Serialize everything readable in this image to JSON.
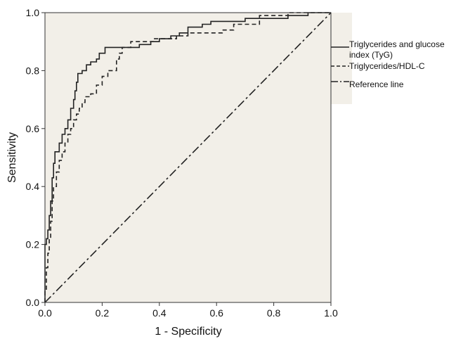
{
  "chart_data": {
    "type": "line",
    "title": "",
    "xlabel": "1 - Specificity",
    "ylabel": "Sensitivity",
    "xlim": [
      0,
      1
    ],
    "ylim": [
      0,
      1
    ],
    "xticks": [
      "0.0",
      "0.2",
      "0.4",
      "0.6",
      "0.8",
      "1.0"
    ],
    "yticks": [
      "0.0",
      "0.2",
      "0.4",
      "0.6",
      "0.8",
      "1.0"
    ],
    "grid": false,
    "legend_position": "right",
    "plot_background": "#f2efe8",
    "series": [
      {
        "name": "Triglycerides and glucose index (TyG)",
        "style": "solid",
        "color": "#222222",
        "x": [
          0,
          0,
          0.005,
          0.005,
          0.01,
          0.01,
          0.015,
          0.015,
          0.02,
          0.02,
          0.025,
          0.025,
          0.03,
          0.03,
          0.035,
          0.035,
          0.05,
          0.05,
          0.06,
          0.06,
          0.07,
          0.07,
          0.08,
          0.08,
          0.09,
          0.09,
          0.1,
          0.1,
          0.105,
          0.105,
          0.11,
          0.11,
          0.115,
          0.115,
          0.13,
          0.13,
          0.145,
          0.145,
          0.16,
          0.16,
          0.18,
          0.18,
          0.19,
          0.19,
          0.2,
          0.2,
          0.21,
          0.21,
          0.24,
          0.24,
          0.28,
          0.28,
          0.33,
          0.33,
          0.37,
          0.37,
          0.4,
          0.4,
          0.44,
          0.44,
          0.47,
          0.47,
          0.5,
          0.5,
          0.55,
          0.55,
          0.58,
          0.58,
          0.63,
          0.63,
          0.7,
          0.7,
          0.78,
          0.78,
          0.85,
          0.85,
          0.92,
          0.92,
          1.0
        ],
        "y": [
          0,
          0.2,
          0.2,
          0.22,
          0.22,
          0.25,
          0.25,
          0.3,
          0.3,
          0.35,
          0.35,
          0.43,
          0.43,
          0.48,
          0.48,
          0.52,
          0.52,
          0.55,
          0.55,
          0.58,
          0.58,
          0.6,
          0.6,
          0.63,
          0.63,
          0.67,
          0.67,
          0.7,
          0.7,
          0.73,
          0.73,
          0.76,
          0.76,
          0.79,
          0.79,
          0.8,
          0.8,
          0.82,
          0.82,
          0.83,
          0.83,
          0.84,
          0.84,
          0.86,
          0.86,
          0.86,
          0.86,
          0.88,
          0.88,
          0.88,
          0.88,
          0.88,
          0.88,
          0.89,
          0.89,
          0.9,
          0.9,
          0.91,
          0.91,
          0.92,
          0.92,
          0.93,
          0.93,
          0.95,
          0.95,
          0.96,
          0.96,
          0.97,
          0.97,
          0.97,
          0.97,
          0.98,
          0.98,
          0.98,
          0.98,
          0.99,
          0.99,
          1.0,
          1.0
        ]
      },
      {
        "name": "Triglycerides/HDL-C",
        "style": "dashed",
        "color": "#222222",
        "x": [
          0,
          0,
          0.005,
          0.005,
          0.01,
          0.01,
          0.015,
          0.015,
          0.02,
          0.02,
          0.025,
          0.025,
          0.03,
          0.03,
          0.04,
          0.04,
          0.05,
          0.05,
          0.06,
          0.06,
          0.07,
          0.07,
          0.08,
          0.08,
          0.09,
          0.09,
          0.1,
          0.1,
          0.11,
          0.11,
          0.12,
          0.12,
          0.13,
          0.13,
          0.14,
          0.14,
          0.16,
          0.16,
          0.18,
          0.18,
          0.2,
          0.2,
          0.22,
          0.22,
          0.25,
          0.25,
          0.26,
          0.26,
          0.27,
          0.27,
          0.3,
          0.3,
          0.35,
          0.35,
          0.38,
          0.38,
          0.42,
          0.42,
          0.46,
          0.46,
          0.5,
          0.5,
          0.55,
          0.55,
          0.62,
          0.62,
          0.66,
          0.66,
          0.75,
          0.75,
          0.85,
          0.85,
          0.9,
          0.9,
          1.0
        ],
        "y": [
          0,
          0.04,
          0.04,
          0.12,
          0.12,
          0.17,
          0.17,
          0.22,
          0.22,
          0.28,
          0.28,
          0.35,
          0.35,
          0.4,
          0.4,
          0.45,
          0.45,
          0.49,
          0.49,
          0.52,
          0.52,
          0.55,
          0.55,
          0.58,
          0.58,
          0.6,
          0.6,
          0.63,
          0.63,
          0.65,
          0.65,
          0.67,
          0.67,
          0.69,
          0.69,
          0.71,
          0.71,
          0.72,
          0.72,
          0.75,
          0.75,
          0.78,
          0.78,
          0.8,
          0.8,
          0.84,
          0.84,
          0.86,
          0.86,
          0.88,
          0.88,
          0.9,
          0.9,
          0.9,
          0.9,
          0.91,
          0.91,
          0.91,
          0.91,
          0.92,
          0.92,
          0.93,
          0.93,
          0.93,
          0.93,
          0.94,
          0.94,
          0.96,
          0.96,
          0.99,
          0.99,
          1.0,
          1.0,
          1.0,
          1.0
        ]
      },
      {
        "name": "Reference line",
        "style": "dashdot",
        "color": "#222222",
        "x": [
          0,
          1
        ],
        "y": [
          0,
          1
        ]
      }
    ],
    "legend_entries": [
      "Triglycerides and glucose index (TyG)",
      "Triglycerides/HDL-C",
      "Reference line"
    ]
  }
}
